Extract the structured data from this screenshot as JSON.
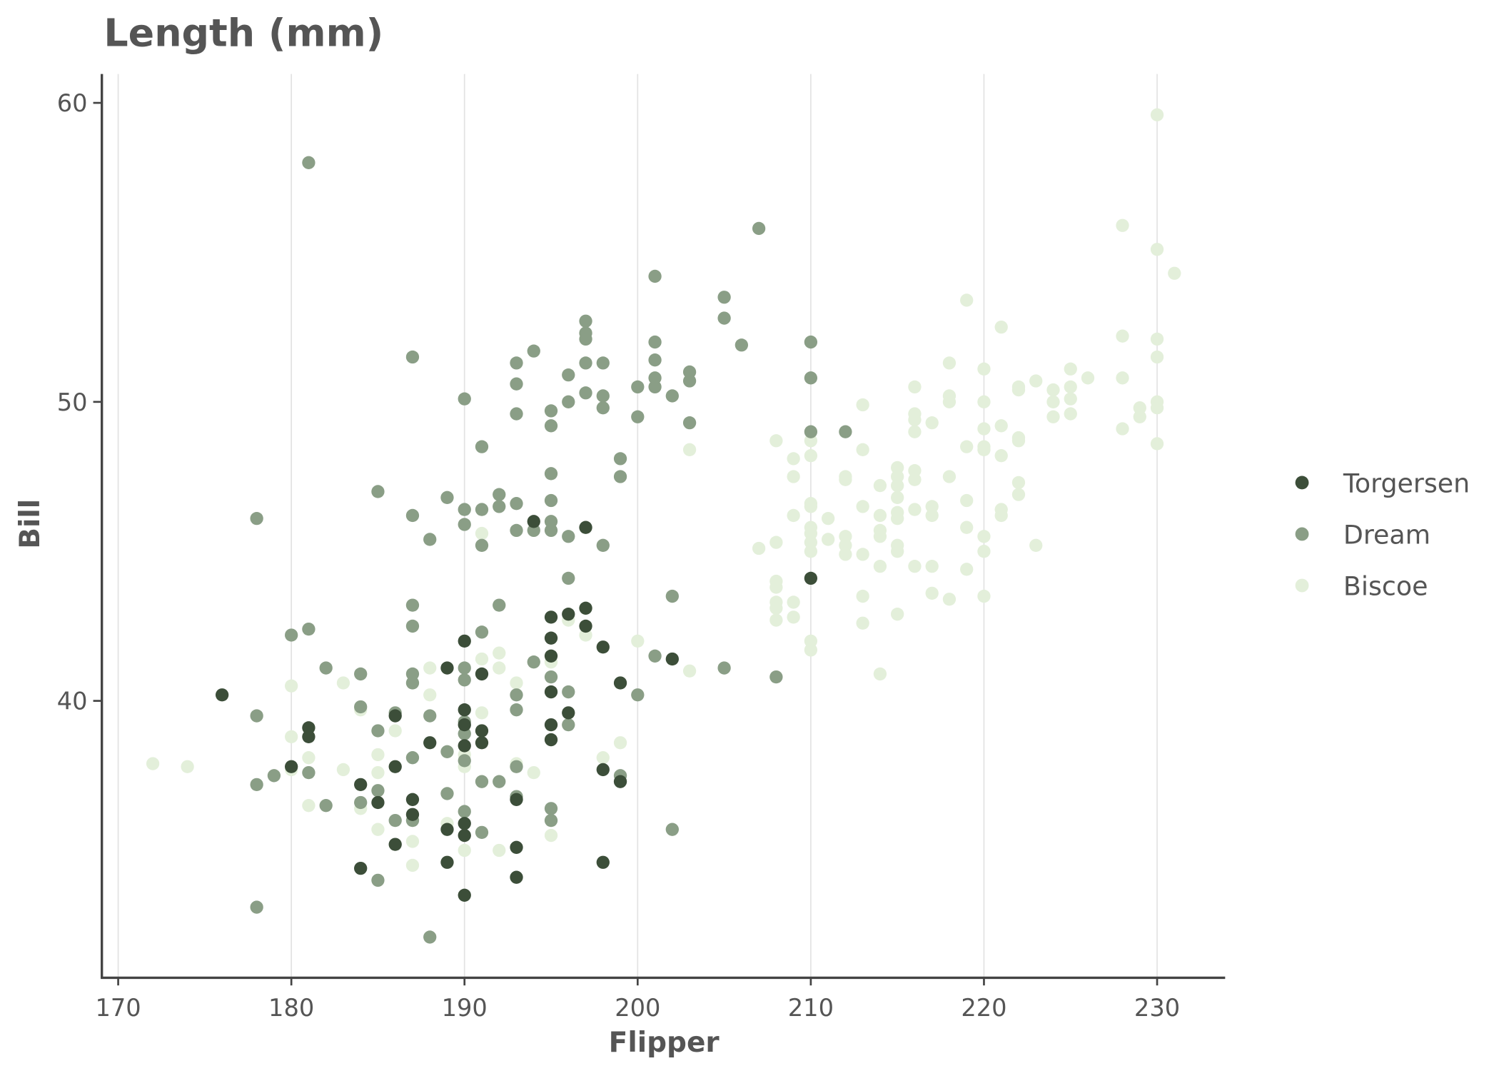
{
  "chart_data": {
    "type": "scatter",
    "title": "Length (mm)",
    "xlabel": "Flipper",
    "ylabel": "Bill",
    "xlim": [
      169.2,
      234
    ],
    "ylim": [
      30.7,
      61
    ],
    "x_ticks": [
      170,
      180,
      190,
      200,
      210,
      220,
      230
    ],
    "y_ticks": [
      40,
      50,
      60
    ],
    "grid": "vertical major gridlines",
    "legend_position": "right",
    "series": [
      {
        "name": "Torgersen",
        "color": "#3c4e39",
        "points": [
          [
            176,
            40.2
          ],
          [
            180,
            37.8
          ],
          [
            181,
            39.1
          ],
          [
            181,
            38.8
          ],
          [
            184,
            37.2
          ],
          [
            184,
            34.4
          ],
          [
            185,
            36.6
          ],
          [
            186,
            37.8
          ],
          [
            186,
            35.2
          ],
          [
            186,
            39.5
          ],
          [
            187,
            36.7
          ],
          [
            187,
            36.2
          ],
          [
            188,
            38.6
          ],
          [
            189,
            41.1
          ],
          [
            189,
            35.7
          ],
          [
            189,
            34.6
          ],
          [
            190,
            42.0
          ],
          [
            190,
            39.7
          ],
          [
            190,
            39.2
          ],
          [
            190,
            38.5
          ],
          [
            190,
            35.9
          ],
          [
            190,
            35.5
          ],
          [
            190,
            33.5
          ],
          [
            191,
            40.9
          ],
          [
            191,
            39.0
          ],
          [
            191,
            38.6
          ],
          [
            193,
            36.7
          ],
          [
            193,
            35.1
          ],
          [
            193,
            34.1
          ],
          [
            194,
            46.0
          ],
          [
            195,
            42.8
          ],
          [
            195,
            42.1
          ],
          [
            195,
            41.5
          ],
          [
            195,
            40.3
          ],
          [
            195,
            39.2
          ],
          [
            195,
            38.7
          ],
          [
            196,
            42.9
          ],
          [
            196,
            39.6
          ],
          [
            197,
            45.8
          ],
          [
            197,
            43.1
          ],
          [
            197,
            42.5
          ],
          [
            198,
            41.8
          ],
          [
            198,
            37.7
          ],
          [
            198,
            34.6
          ],
          [
            199,
            40.6
          ],
          [
            199,
            37.3
          ],
          [
            202,
            41.4
          ],
          [
            210,
            44.1
          ]
        ]
      },
      {
        "name": "Dream",
        "color": "#8a9e86",
        "points": [
          [
            181,
            58.0
          ],
          [
            178,
            46.1
          ],
          [
            178,
            39.5
          ],
          [
            178,
            37.2
          ],
          [
            178,
            33.1
          ],
          [
            179,
            37.5
          ],
          [
            180,
            42.2
          ],
          [
            181,
            42.4
          ],
          [
            181,
            37.6
          ],
          [
            182,
            41.1
          ],
          [
            182,
            36.5
          ],
          [
            184,
            40.9
          ],
          [
            184,
            39.8
          ],
          [
            184,
            36.6
          ],
          [
            185,
            47.0
          ],
          [
            185,
            39.0
          ],
          [
            185,
            37.0
          ],
          [
            185,
            34.0
          ],
          [
            186,
            39.6
          ],
          [
            186,
            36.0
          ],
          [
            187,
            51.5
          ],
          [
            187,
            46.2
          ],
          [
            187,
            43.2
          ],
          [
            187,
            42.5
          ],
          [
            187,
            40.9
          ],
          [
            187,
            40.6
          ],
          [
            187,
            38.1
          ],
          [
            187,
            36.0
          ],
          [
            188,
            45.4
          ],
          [
            188,
            39.5
          ],
          [
            188,
            32.1
          ],
          [
            189,
            46.8
          ],
          [
            189,
            38.3
          ],
          [
            189,
            36.9
          ],
          [
            190,
            50.1
          ],
          [
            190,
            46.4
          ],
          [
            190,
            45.9
          ],
          [
            190,
            41.1
          ],
          [
            190,
            40.7
          ],
          [
            190,
            39.3
          ],
          [
            190,
            38.9
          ],
          [
            190,
            38.0
          ],
          [
            190,
            36.3
          ],
          [
            191,
            48.5
          ],
          [
            191,
            46.4
          ],
          [
            191,
            45.2
          ],
          [
            191,
            42.3
          ],
          [
            191,
            37.3
          ],
          [
            191,
            35.6
          ],
          [
            192,
            46.9
          ],
          [
            192,
            46.5
          ],
          [
            192,
            43.2
          ],
          [
            192,
            37.3
          ],
          [
            193,
            51.3
          ],
          [
            193,
            50.6
          ],
          [
            193,
            49.6
          ],
          [
            193,
            46.6
          ],
          [
            193,
            45.7
          ],
          [
            193,
            40.2
          ],
          [
            193,
            39.7
          ],
          [
            193,
            37.8
          ],
          [
            193,
            36.8
          ],
          [
            194,
            51.7
          ],
          [
            194,
            45.7
          ],
          [
            194,
            41.3
          ],
          [
            195,
            49.7
          ],
          [
            195,
            49.2
          ],
          [
            195,
            47.6
          ],
          [
            195,
            46.7
          ],
          [
            195,
            46.0
          ],
          [
            195,
            45.7
          ],
          [
            195,
            40.8
          ],
          [
            195,
            36.4
          ],
          [
            195,
            36.0
          ],
          [
            196,
            50.9
          ],
          [
            196,
            50.0
          ],
          [
            196,
            45.5
          ],
          [
            196,
            44.1
          ],
          [
            196,
            40.3
          ],
          [
            196,
            39.2
          ],
          [
            197,
            52.7
          ],
          [
            197,
            52.3
          ],
          [
            197,
            52.1
          ],
          [
            197,
            51.3
          ],
          [
            197,
            50.3
          ],
          [
            198,
            51.3
          ],
          [
            198,
            50.2
          ],
          [
            198,
            49.8
          ],
          [
            198,
            45.2
          ],
          [
            199,
            48.1
          ],
          [
            199,
            47.5
          ],
          [
            199,
            37.5
          ],
          [
            200,
            50.5
          ],
          [
            200,
            49.5
          ],
          [
            200,
            40.2
          ],
          [
            201,
            54.2
          ],
          [
            201,
            52.0
          ],
          [
            201,
            51.4
          ],
          [
            201,
            50.8
          ],
          [
            201,
            50.5
          ],
          [
            201,
            41.5
          ],
          [
            202,
            50.2
          ],
          [
            202,
            43.5
          ],
          [
            202,
            35.7
          ],
          [
            203,
            51.0
          ],
          [
            203,
            50.7
          ],
          [
            203,
            49.3
          ],
          [
            205,
            53.5
          ],
          [
            205,
            52.8
          ],
          [
            205,
            41.1
          ],
          [
            206,
            51.9
          ],
          [
            207,
            55.8
          ],
          [
            208,
            40.8
          ],
          [
            210,
            52.0
          ],
          [
            210,
            50.8
          ],
          [
            210,
            49.0
          ],
          [
            212,
            49.0
          ]
        ]
      },
      {
        "name": "Biscoe",
        "color": "#e3efda",
        "points": [
          [
            172,
            37.9
          ],
          [
            174,
            37.8
          ],
          [
            180,
            40.5
          ],
          [
            180,
            38.8
          ],
          [
            180,
            37.7
          ],
          [
            181,
            38.1
          ],
          [
            181,
            36.5
          ],
          [
            183,
            40.6
          ],
          [
            183,
            37.7
          ],
          [
            184,
            39.7
          ],
          [
            184,
            36.4
          ],
          [
            185,
            38.2
          ],
          [
            185,
            37.6
          ],
          [
            185,
            35.7
          ],
          [
            186,
            39.0
          ],
          [
            187,
            40.6
          ],
          [
            187,
            35.3
          ],
          [
            187,
            34.5
          ],
          [
            188,
            41.1
          ],
          [
            188,
            40.2
          ],
          [
            189,
            35.9
          ],
          [
            190,
            38.2
          ],
          [
            190,
            37.8
          ],
          [
            190,
            35.0
          ],
          [
            191,
            45.6
          ],
          [
            191,
            41.4
          ],
          [
            191,
            39.6
          ],
          [
            192,
            41.6
          ],
          [
            192,
            41.1
          ],
          [
            192,
            35.0
          ],
          [
            193,
            40.6
          ],
          [
            193,
            37.9
          ],
          [
            194,
            37.6
          ],
          [
            195,
            41.3
          ],
          [
            195,
            35.5
          ],
          [
            196,
            42.7
          ],
          [
            197,
            43.1
          ],
          [
            197,
            42.2
          ],
          [
            198,
            38.1
          ],
          [
            199,
            38.6
          ],
          [
            200,
            42.0
          ],
          [
            203,
            48.4
          ],
          [
            203,
            41.0
          ],
          [
            207,
            45.1
          ],
          [
            208,
            48.7
          ],
          [
            208,
            45.3
          ],
          [
            208,
            44.0
          ],
          [
            208,
            43.8
          ],
          [
            208,
            43.3
          ],
          [
            208,
            43.1
          ],
          [
            208,
            42.7
          ],
          [
            209,
            48.1
          ],
          [
            209,
            47.5
          ],
          [
            209,
            46.2
          ],
          [
            209,
            43.3
          ],
          [
            209,
            42.8
          ],
          [
            210,
            48.7
          ],
          [
            210,
            48.2
          ],
          [
            210,
            46.6
          ],
          [
            210,
            46.5
          ],
          [
            210,
            45.8
          ],
          [
            210,
            45.6
          ],
          [
            210,
            45.3
          ],
          [
            210,
            45.0
          ],
          [
            210,
            42.0
          ],
          [
            210,
            41.7
          ],
          [
            211,
            46.1
          ],
          [
            211,
            45.4
          ],
          [
            212,
            47.5
          ],
          [
            212,
            47.4
          ],
          [
            212,
            45.5
          ],
          [
            212,
            45.2
          ],
          [
            212,
            44.9
          ],
          [
            213,
            49.9
          ],
          [
            213,
            48.4
          ],
          [
            213,
            46.5
          ],
          [
            213,
            44.9
          ],
          [
            213,
            43.5
          ],
          [
            213,
            42.6
          ],
          [
            214,
            47.2
          ],
          [
            214,
            46.2
          ],
          [
            214,
            45.7
          ],
          [
            214,
            45.5
          ],
          [
            214,
            44.5
          ],
          [
            214,
            40.9
          ],
          [
            215,
            47.8
          ],
          [
            215,
            47.5
          ],
          [
            215,
            47.2
          ],
          [
            215,
            46.8
          ],
          [
            215,
            46.3
          ],
          [
            215,
            46.1
          ],
          [
            215,
            45.2
          ],
          [
            215,
            45.0
          ],
          [
            215,
            42.9
          ],
          [
            216,
            50.5
          ],
          [
            216,
            49.6
          ],
          [
            216,
            49.4
          ],
          [
            216,
            49.0
          ],
          [
            216,
            47.7
          ],
          [
            216,
            47.4
          ],
          [
            216,
            46.4
          ],
          [
            216,
            44.5
          ],
          [
            217,
            49.3
          ],
          [
            217,
            46.5
          ],
          [
            217,
            46.2
          ],
          [
            217,
            44.5
          ],
          [
            217,
            43.6
          ],
          [
            218,
            51.3
          ],
          [
            218,
            50.2
          ],
          [
            218,
            50.0
          ],
          [
            218,
            47.5
          ],
          [
            218,
            43.4
          ],
          [
            219,
            53.4
          ],
          [
            219,
            48.5
          ],
          [
            219,
            46.7
          ],
          [
            219,
            45.8
          ],
          [
            219,
            44.4
          ],
          [
            220,
            51.1
          ],
          [
            220,
            50.0
          ],
          [
            220,
            49.1
          ],
          [
            220,
            48.5
          ],
          [
            220,
            48.4
          ],
          [
            220,
            45.5
          ],
          [
            220,
            45.0
          ],
          [
            220,
            43.5
          ],
          [
            221,
            52.5
          ],
          [
            221,
            49.2
          ],
          [
            221,
            48.2
          ],
          [
            221,
            46.4
          ],
          [
            221,
            46.2
          ],
          [
            222,
            50.5
          ],
          [
            222,
            50.4
          ],
          [
            222,
            48.8
          ],
          [
            222,
            48.7
          ],
          [
            222,
            47.3
          ],
          [
            222,
            46.9
          ],
          [
            223,
            50.7
          ],
          [
            223,
            45.2
          ],
          [
            224,
            50.4
          ],
          [
            224,
            50.0
          ],
          [
            224,
            49.5
          ],
          [
            225,
            51.1
          ],
          [
            225,
            50.5
          ],
          [
            225,
            50.1
          ],
          [
            225,
            49.6
          ],
          [
            226,
            50.8
          ],
          [
            228,
            55.9
          ],
          [
            228,
            52.2
          ],
          [
            228,
            50.8
          ],
          [
            228,
            49.1
          ],
          [
            229,
            49.8
          ],
          [
            229,
            49.5
          ],
          [
            230,
            59.6
          ],
          [
            230,
            55.1
          ],
          [
            230,
            52.1
          ],
          [
            230,
            51.5
          ],
          [
            230,
            50.0
          ],
          [
            230,
            49.8
          ],
          [
            230,
            48.6
          ],
          [
            231,
            54.3
          ]
        ]
      }
    ]
  }
}
